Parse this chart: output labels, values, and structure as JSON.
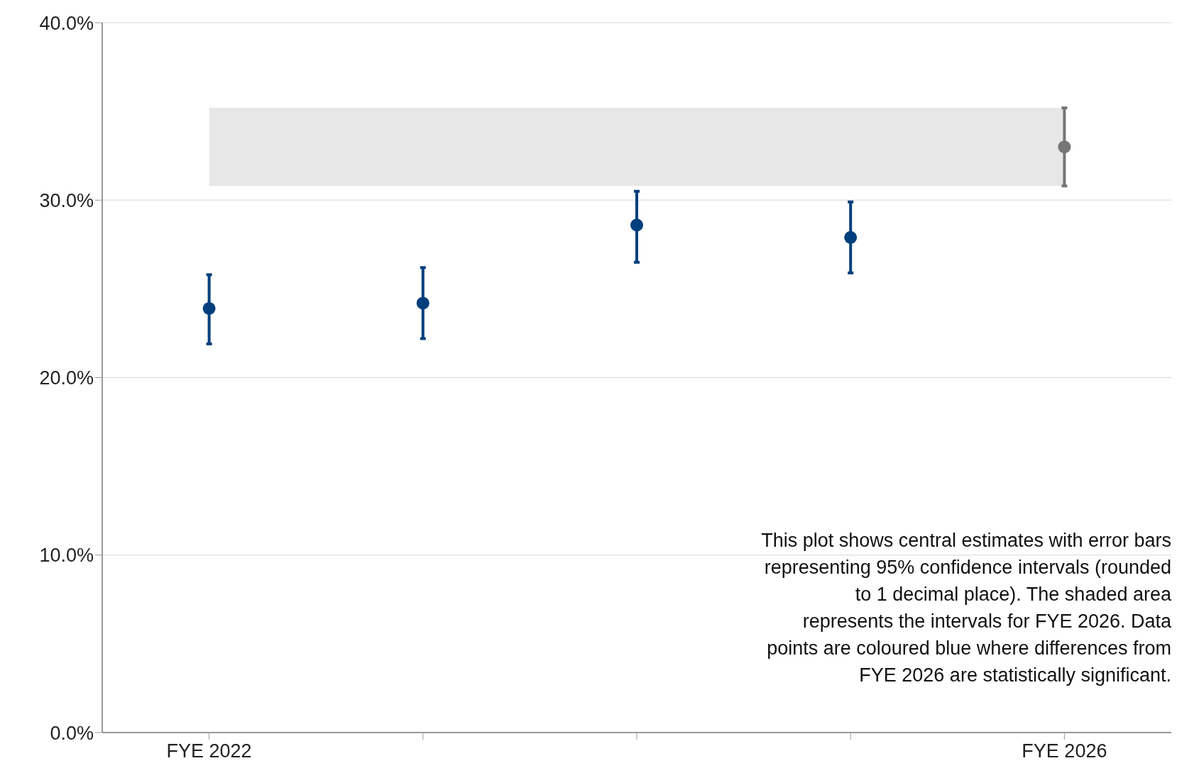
{
  "chart_data": {
    "type": "scatter",
    "categories": [
      "FYE 2022",
      null,
      null,
      null,
      "FYE 2026"
    ],
    "values": [
      23.9,
      24.2,
      28.6,
      27.9,
      33.0
    ],
    "errors": [
      [
        21.9,
        25.8
      ],
      [
        22.2,
        26.2
      ],
      [
        26.5,
        30.5
      ],
      [
        25.9,
        29.9
      ],
      [
        30.8,
        35.2
      ]
    ],
    "colors": [
      "#003f7d",
      "#003f7d",
      "#003f7d",
      "#003f7d",
      "#767676"
    ],
    "ylim": [
      0,
      40
    ],
    "yticks": [
      {
        "value": 0,
        "label": "0.0%"
      },
      {
        "value": 10,
        "label": "10.0%"
      },
      {
        "value": 20,
        "label": "20.0%"
      },
      {
        "value": 30,
        "label": "30.0%"
      },
      {
        "value": 40,
        "label": "40.0%"
      }
    ],
    "bands": [
      {
        "axis": "y",
        "from": 30.8,
        "to": 35.2,
        "color": "#e7e7e7"
      }
    ],
    "grid": "y",
    "marker": "circle",
    "annotations": [
      "This plot shows central estimates with error bars representing 95% confidence intervals (rounded to 1 decimal place). The shaded area represents the intervals for FYE 2026. Data points are coloured blue where differences from FYE 2026 are statistically significant."
    ]
  }
}
